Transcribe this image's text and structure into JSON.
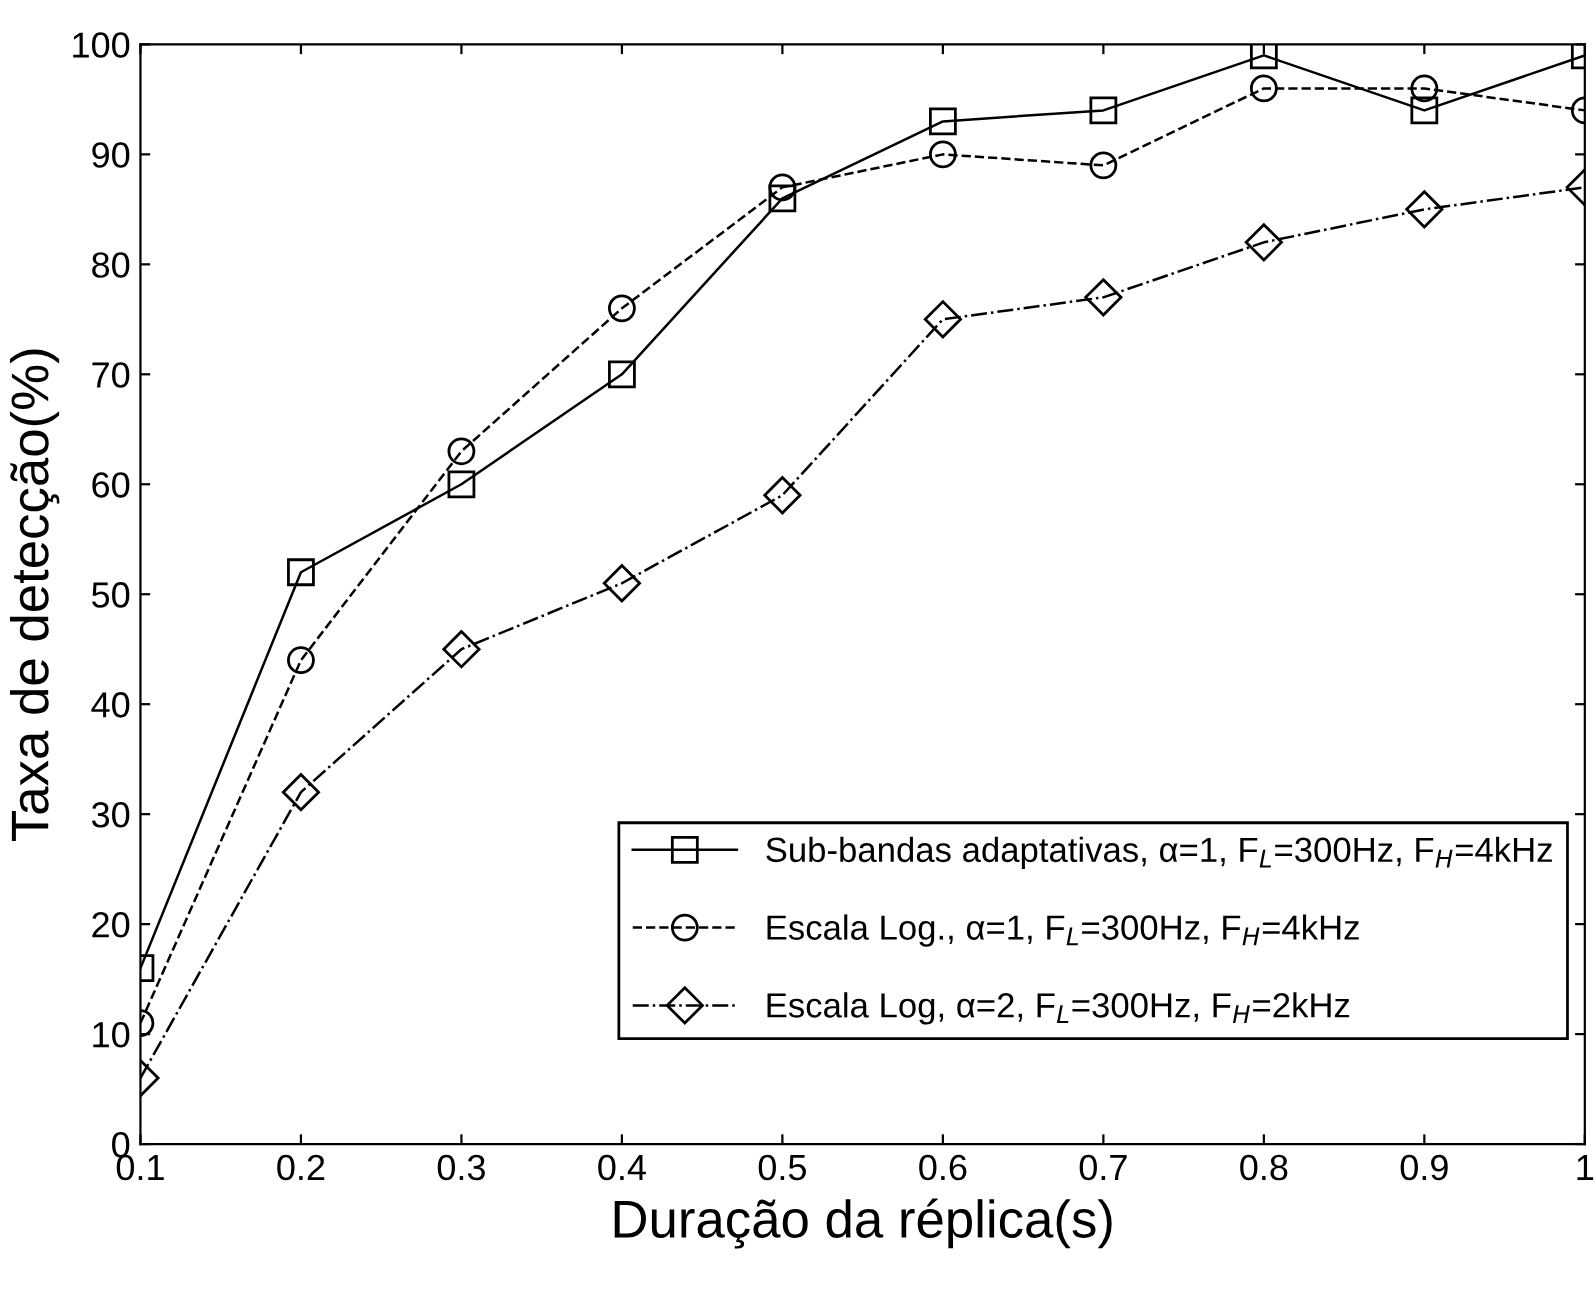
{
  "chart_data": {
    "type": "line",
    "xlabel": "Duração da réplica(s)",
    "ylabel": "Taxa de detecção(%)",
    "x": [
      0.1,
      0.2,
      0.3,
      0.4,
      0.5,
      0.6,
      0.7,
      0.8,
      0.9,
      1
    ],
    "series": [
      {
        "name": "Sub-bandas adaptativas, α=1, F$_{L}$=300Hz, F$_{H}$=4kHz",
        "color": "#000000",
        "marker": "square",
        "line_style": "solid",
        "values": [
          16,
          52,
          60,
          70,
          86,
          93,
          94,
          99,
          94,
          99
        ]
      },
      {
        "name": "Escala Log., α=1, F$_{L}$=300Hz, F$_{H}$=4kHz",
        "color": "#000000",
        "marker": "circle",
        "line_style": "dashed",
        "values": [
          11,
          44,
          63,
          76,
          87,
          90,
          89,
          96,
          96,
          94
        ]
      },
      {
        "name": "Escala Log, α=2, F$_{L}$=300Hz, F$_{H}$=2kHz",
        "color": "#000000",
        "marker": "diamond",
        "line_style": "dashdot",
        "values": [
          6,
          32,
          45,
          51,
          59,
          75,
          77,
          82,
          85,
          87
        ]
      }
    ],
    "xlim": [
      0.1,
      1
    ],
    "ylim": [
      0,
      100
    ],
    "xticks": [
      0.1,
      0.2,
      0.3,
      0.4,
      0.5,
      0.6,
      0.7,
      0.8,
      0.9,
      1
    ],
    "yticks": [
      0,
      10,
      20,
      30,
      40,
      50,
      60,
      70,
      80,
      90,
      100
    ],
    "grid": false,
    "legend": "bottom right"
  }
}
